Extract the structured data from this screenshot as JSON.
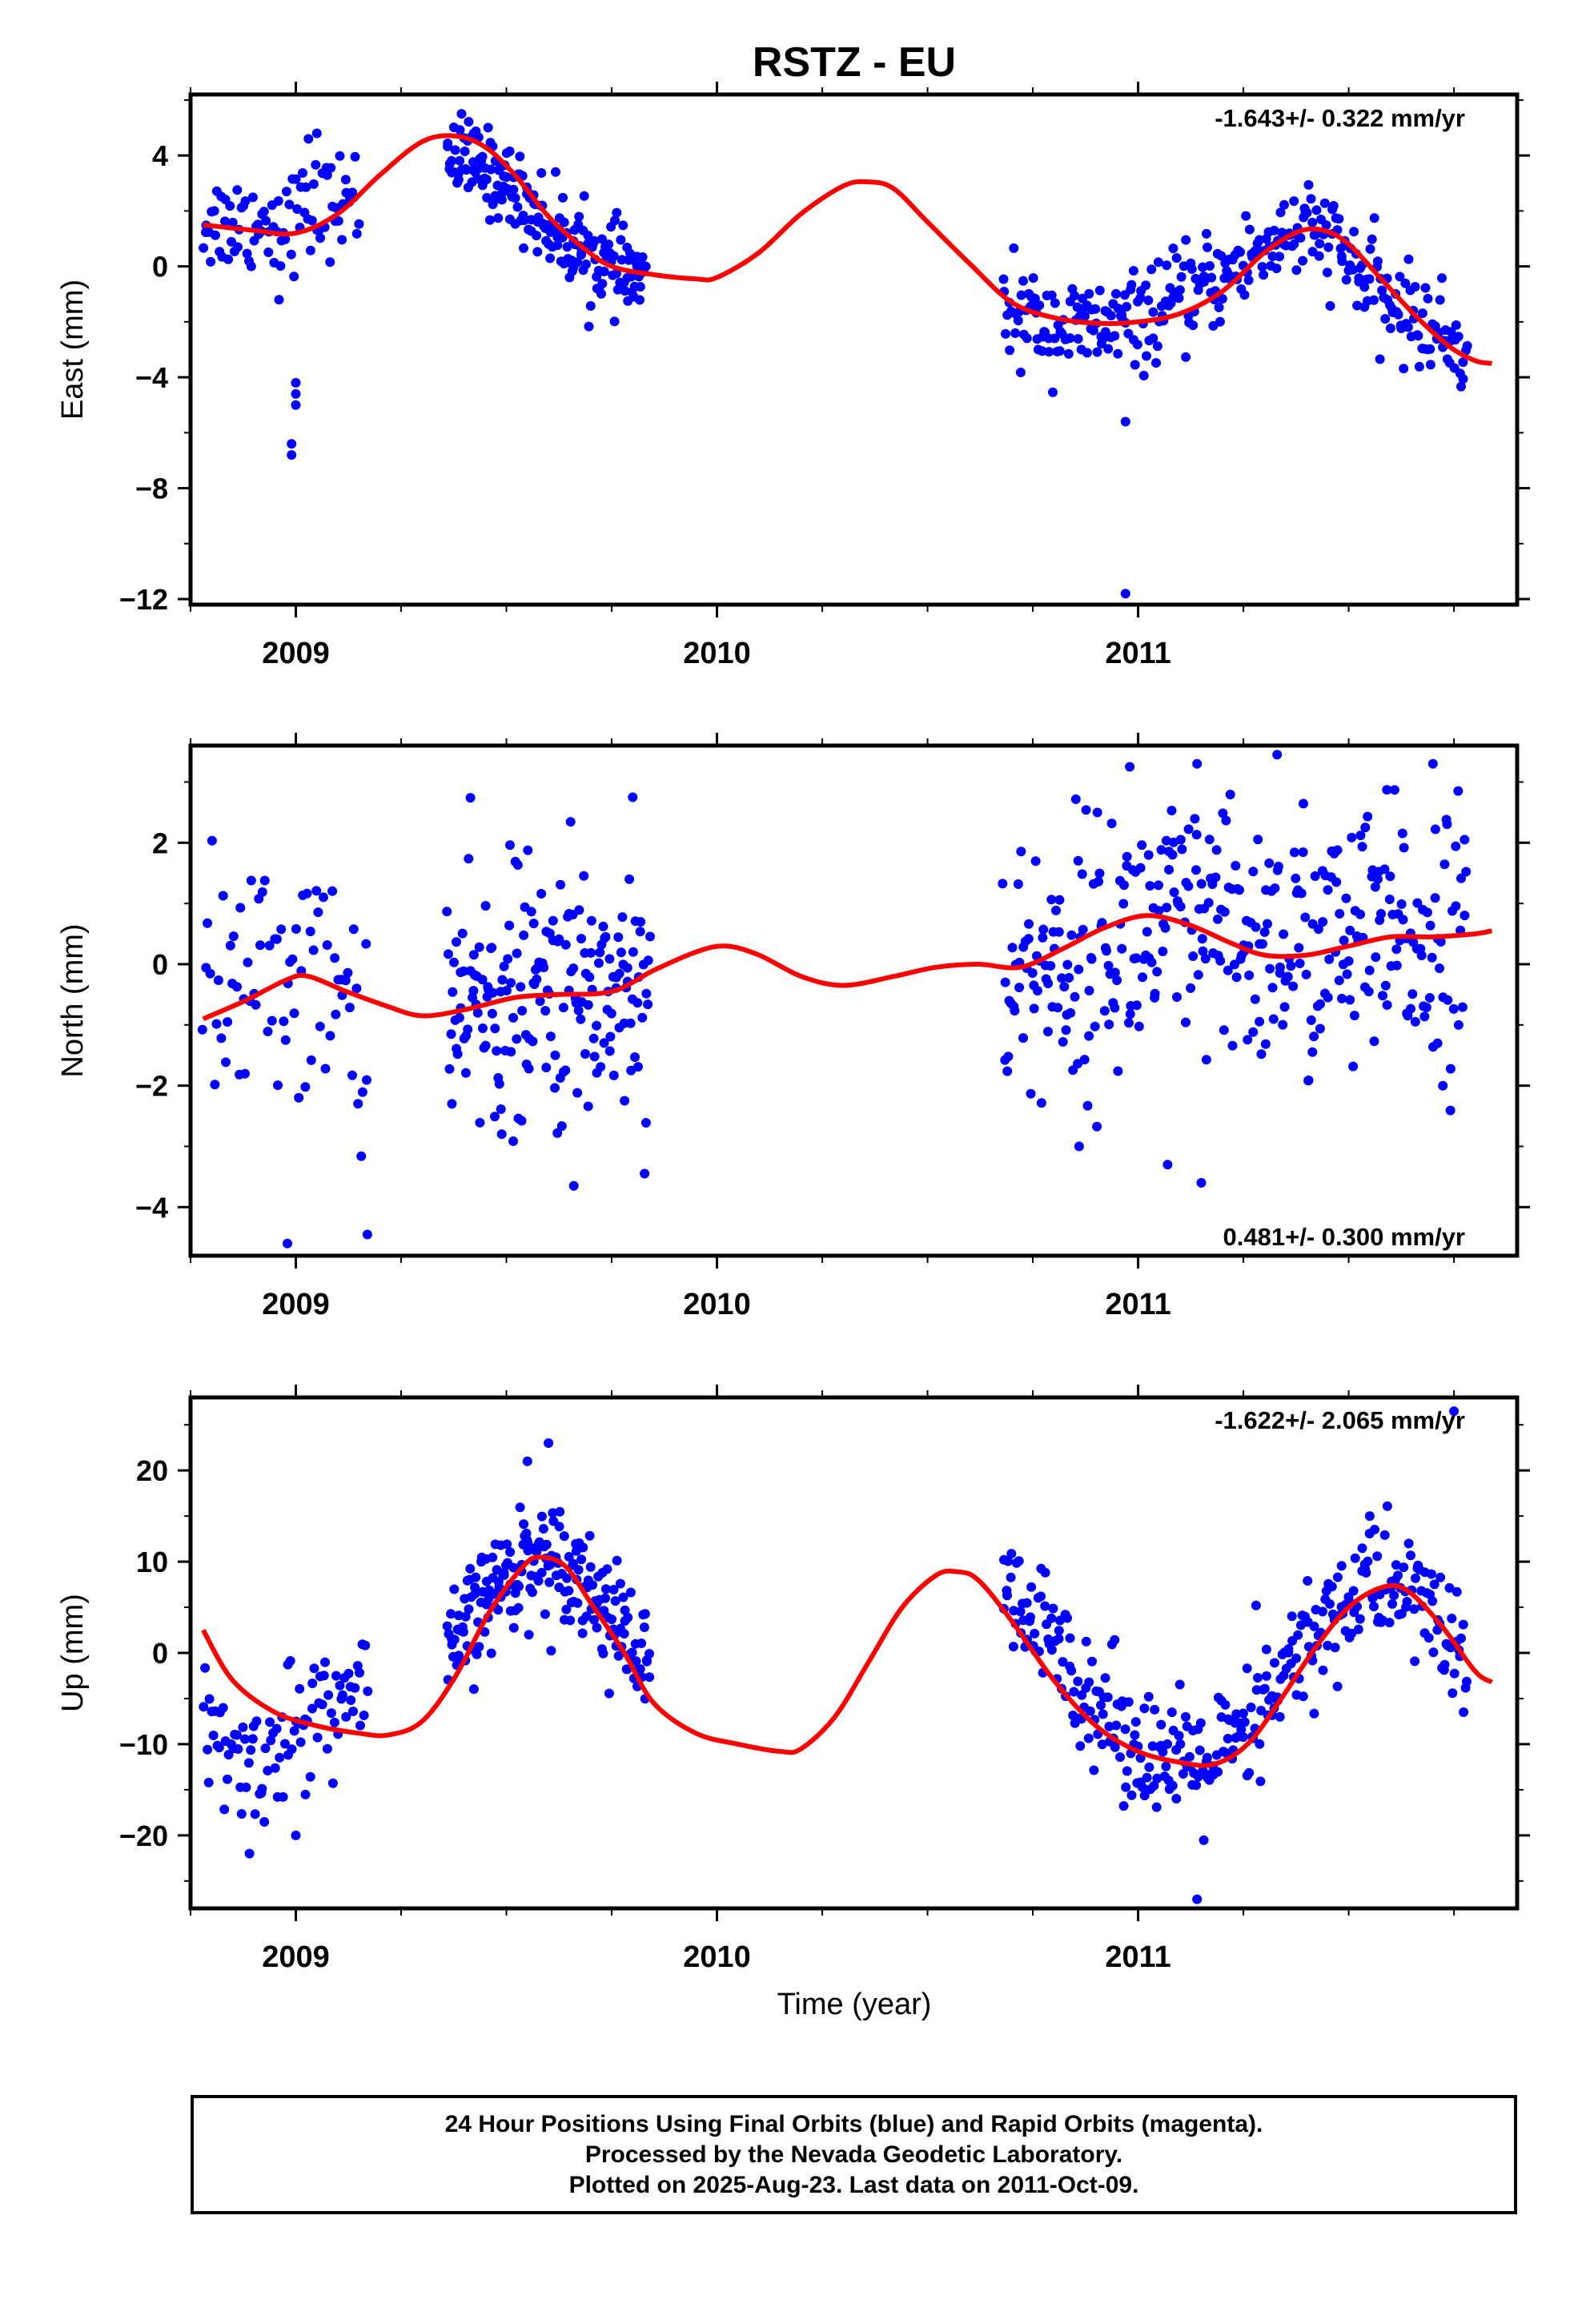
{
  "title": "RSTZ - EU",
  "xlabel": "Time (year)",
  "colors": {
    "data": "#0000ff",
    "fit": "#ff0000",
    "frame": "#000000"
  },
  "footer": [
    "24 Hour Positions Using Final Orbits (blue) and Rapid Orbits (magenta).",
    "Processed by the Nevada Geodetic Laboratory.",
    "Plotted on 2025-Aug-23. Last data on 2011-Oct-09."
  ],
  "chart_data": [
    {
      "type": "scatter",
      "name": "east",
      "ylabel": "East (mm)",
      "rate_label": "-1.643+/- 0.322 mm/yr",
      "xlim": [
        2008.75,
        2011.9
      ],
      "ylim": [
        -12.2,
        6.2
      ],
      "yticks": [
        4,
        0,
        -4,
        -8,
        -12
      ],
      "ytick_labels": [
        "4",
        "0",
        "−4",
        "−8",
        "−12"
      ],
      "xticks": [
        2009,
        2010,
        2011
      ],
      "xtick_labels": [
        "2009",
        "2010",
        "2011"
      ],
      "minor_step": 0.25,
      "segments": [
        {
          "x0": 2008.78,
          "x1": 2009.15,
          "n": 90,
          "trend": [
            [
              2008.78,
              1.6
            ],
            [
              2008.95,
              1.6
            ],
            [
              2009.15,
              2.5
            ]
          ],
          "spread": 0.9
        },
        {
          "x0": 2009.36,
          "x1": 2009.83,
          "n": 200,
          "trend": [
            [
              2009.36,
              4.2
            ],
            [
              2009.5,
              3.0
            ],
            [
              2009.62,
              1.2
            ],
            [
              2009.72,
              0.2
            ],
            [
              2009.83,
              -0.6
            ]
          ],
          "spread": 0.75
        },
        {
          "x0": 2010.68,
          "x1": 2011.78,
          "n": 330,
          "trend": [
            [
              2010.68,
              -1.6
            ],
            [
              2010.85,
              -2.3
            ],
            [
              2011.0,
              -2.0
            ],
            [
              2011.2,
              -0.4
            ],
            [
              2011.35,
              1.2
            ],
            [
              2011.45,
              1.1
            ],
            [
              2011.58,
              -1.2
            ],
            [
              2011.78,
              -3.0
            ]
          ],
          "spread": 0.85
        }
      ],
      "outliers": [
        [
          2008.99,
          -6.4
        ],
        [
          2008.99,
          -6.8
        ],
        [
          2009.0,
          -5.0
        ],
        [
          2009.0,
          -4.2
        ],
        [
          2009.0,
          -4.6
        ],
        [
          2010.97,
          -5.6
        ],
        [
          2010.97,
          -11.8
        ],
        [
          2009.03,
          4.6
        ],
        [
          2009.05,
          4.8
        ],
        [
          2008.96,
          -1.2
        ]
      ],
      "fit": [
        [
          2008.78,
          1.5
        ],
        [
          2008.9,
          1.3
        ],
        [
          2009.0,
          1.2
        ],
        [
          2009.1,
          1.9
        ],
        [
          2009.2,
          3.3
        ],
        [
          2009.3,
          4.5
        ],
        [
          2009.38,
          4.7
        ],
        [
          2009.45,
          4.3
        ],
        [
          2009.52,
          3.3
        ],
        [
          2009.6,
          1.8
        ],
        [
          2009.68,
          0.7
        ],
        [
          2009.75,
          0.0
        ],
        [
          2009.85,
          -0.3
        ],
        [
          2009.95,
          -0.45
        ],
        [
          2010.0,
          -0.4
        ],
        [
          2010.1,
          0.5
        ],
        [
          2010.2,
          1.9
        ],
        [
          2010.3,
          2.9
        ],
        [
          2010.36,
          3.05
        ],
        [
          2010.42,
          2.8
        ],
        [
          2010.5,
          1.6
        ],
        [
          2010.6,
          0.1
        ],
        [
          2010.7,
          -1.3
        ],
        [
          2010.8,
          -1.85
        ],
        [
          2010.9,
          -2.05
        ],
        [
          2011.0,
          -2.0
        ],
        [
          2011.1,
          -1.7
        ],
        [
          2011.2,
          -0.9
        ],
        [
          2011.3,
          0.5
        ],
        [
          2011.38,
          1.25
        ],
        [
          2011.44,
          1.3
        ],
        [
          2011.5,
          0.8
        ],
        [
          2011.58,
          -0.5
        ],
        [
          2011.66,
          -1.8
        ],
        [
          2011.74,
          -2.9
        ],
        [
          2011.8,
          -3.4
        ],
        [
          2011.84,
          -3.5
        ]
      ]
    },
    {
      "type": "scatter",
      "name": "north",
      "ylabel": "North (mm)",
      "rate_label": "0.481+/- 0.300 mm/yr",
      "xlim": [
        2008.75,
        2011.9
      ],
      "ylim": [
        -4.8,
        3.6
      ],
      "yticks": [
        2,
        0,
        -2,
        -4
      ],
      "ytick_labels": [
        "2",
        "0",
        "−2",
        "−4"
      ],
      "xticks": [
        2009,
        2010,
        2011
      ],
      "xtick_labels": [
        "2009",
        "2010",
        "2011"
      ],
      "minor_step": 0.25,
      "segments": [
        {
          "x0": 2008.78,
          "x1": 2009.17,
          "n": 75,
          "trend": [
            [
              2008.78,
              -0.5
            ],
            [
              2009.0,
              -0.1
            ],
            [
              2009.17,
              -0.8
            ]
          ],
          "spread": 1.0
        },
        {
          "x0": 2009.36,
          "x1": 2009.84,
          "n": 190,
          "trend": [
            [
              2009.36,
              -0.8
            ],
            [
              2009.6,
              -0.5
            ],
            [
              2009.84,
              -0.3
            ]
          ],
          "spread": 1.1
        },
        {
          "x0": 2010.68,
          "x1": 2011.78,
          "n": 360,
          "trend": [
            [
              2010.68,
              -0.3
            ],
            [
              2010.9,
              0.2
            ],
            [
              2011.05,
              0.6
            ],
            [
              2011.25,
              0.3
            ],
            [
              2011.5,
              0.3
            ],
            [
              2011.78,
              0.5
            ]
          ],
          "spread": 1.1
        }
      ],
      "outliers": [
        [
          2008.98,
          -4.6
        ],
        [
          2009.17,
          -4.45
        ],
        [
          2009.66,
          -3.65
        ],
        [
          2011.15,
          -3.6
        ],
        [
          2011.33,
          3.45
        ],
        [
          2011.14,
          3.3
        ],
        [
          2011.7,
          3.3
        ],
        [
          2009.8,
          2.75
        ],
        [
          2010.98,
          3.25
        ],
        [
          2010.86,
          -3.0
        ],
        [
          2011.07,
          -3.3
        ]
      ],
      "fit": [
        [
          2008.78,
          -0.9
        ],
        [
          2008.88,
          -0.6
        ],
        [
          2008.98,
          -0.25
        ],
        [
          2009.03,
          -0.2
        ],
        [
          2009.12,
          -0.45
        ],
        [
          2009.22,
          -0.7
        ],
        [
          2009.3,
          -0.85
        ],
        [
          2009.4,
          -0.75
        ],
        [
          2009.52,
          -0.55
        ],
        [
          2009.62,
          -0.5
        ],
        [
          2009.75,
          -0.45
        ],
        [
          2009.85,
          -0.1
        ],
        [
          2009.95,
          0.2
        ],
        [
          2010.02,
          0.3
        ],
        [
          2010.1,
          0.15
        ],
        [
          2010.2,
          -0.2
        ],
        [
          2010.3,
          -0.35
        ],
        [
          2010.42,
          -0.2
        ],
        [
          2010.52,
          -0.05
        ],
        [
          2010.62,
          0.0
        ],
        [
          2010.72,
          -0.05
        ],
        [
          2010.82,
          0.25
        ],
        [
          2010.92,
          0.6
        ],
        [
          2011.02,
          0.8
        ],
        [
          2011.12,
          0.65
        ],
        [
          2011.22,
          0.35
        ],
        [
          2011.3,
          0.15
        ],
        [
          2011.4,
          0.15
        ],
        [
          2011.5,
          0.3
        ],
        [
          2011.6,
          0.45
        ],
        [
          2011.7,
          0.45
        ],
        [
          2011.8,
          0.5
        ],
        [
          2011.84,
          0.55
        ]
      ]
    },
    {
      "type": "scatter",
      "name": "up",
      "ylabel": "Up (mm)",
      "rate_label": "-1.622+/- 2.065 mm/yr",
      "xlim": [
        2008.75,
        2011.9
      ],
      "ylim": [
        -28,
        28
      ],
      "yticks": [
        20,
        10,
        0,
        -10,
        -20
      ],
      "ytick_labels": [
        "20",
        "10",
        "0",
        "−10",
        "−20"
      ],
      "xticks": [
        2009,
        2010,
        2011
      ],
      "xtick_labels": [
        "2009",
        "2010",
        "2011"
      ],
      "minor_step": 0.25,
      "segments": [
        {
          "x0": 2008.78,
          "x1": 2009.17,
          "n": 95,
          "trend": [
            [
              2008.78,
              -8.0
            ],
            [
              2008.88,
              -13.0
            ],
            [
              2009.0,
              -8.0
            ],
            [
              2009.17,
              -4.0
            ]
          ],
          "spread": 3.5
        },
        {
          "x0": 2009.36,
          "x1": 2009.84,
          "n": 210,
          "trend": [
            [
              2009.36,
              -1.0
            ],
            [
              2009.45,
              6.0
            ],
            [
              2009.55,
              10.5
            ],
            [
              2009.65,
              10.0
            ],
            [
              2009.75,
              4.0
            ],
            [
              2009.84,
              -2.0
            ]
          ],
          "spread": 3.0
        },
        {
          "x0": 2010.68,
          "x1": 2011.78,
          "n": 340,
          "trend": [
            [
              2010.68,
              6.0
            ],
            [
              2010.8,
              1.0
            ],
            [
              2010.95,
              -8.0
            ],
            [
              2011.1,
              -13.0
            ],
            [
              2011.25,
              -10.0
            ],
            [
              2011.4,
              1.0
            ],
            [
              2011.55,
              8.0
            ],
            [
              2011.68,
              6.0
            ],
            [
              2011.78,
              -2.0
            ]
          ],
          "spread": 3.5
        }
      ],
      "outliers": [
        [
          2009.6,
          23.0
        ],
        [
          2011.75,
          26.5
        ],
        [
          2011.14,
          -27.0
        ],
        [
          2008.89,
          -22.0
        ],
        [
          2009.55,
          21.0
        ],
        [
          2011.55,
          15.0
        ],
        [
          2011.28,
          5.2
        ],
        [
          2009.0,
          -20.0
        ]
      ],
      "fit": [
        [
          2008.78,
          2.5
        ],
        [
          2008.85,
          -3.0
        ],
        [
          2008.95,
          -6.5
        ],
        [
          2009.05,
          -8.0
        ],
        [
          2009.15,
          -8.8
        ],
        [
          2009.22,
          -9.0
        ],
        [
          2009.3,
          -7.5
        ],
        [
          2009.38,
          -2.5
        ],
        [
          2009.46,
          4.5
        ],
        [
          2009.54,
          9.5
        ],
        [
          2009.58,
          10.5
        ],
        [
          2009.64,
          9.5
        ],
        [
          2009.7,
          5.5
        ],
        [
          2009.78,
          0.0
        ],
        [
          2009.85,
          -5.5
        ],
        [
          2009.95,
          -8.8
        ],
        [
          2010.05,
          -10.0
        ],
        [
          2010.15,
          -10.8
        ],
        [
          2010.2,
          -10.5
        ],
        [
          2010.28,
          -7.0
        ],
        [
          2010.36,
          -1.0
        ],
        [
          2010.44,
          5.0
        ],
        [
          2010.52,
          8.5
        ],
        [
          2010.57,
          8.9
        ],
        [
          2010.62,
          8.0
        ],
        [
          2010.7,
          3.5
        ],
        [
          2010.8,
          -3.0
        ],
        [
          2010.9,
          -8.0
        ],
        [
          2011.0,
          -10.8
        ],
        [
          2011.1,
          -12.0
        ],
        [
          2011.18,
          -12.2
        ],
        [
          2011.26,
          -10.0
        ],
        [
          2011.34,
          -5.0
        ],
        [
          2011.42,
          0.5
        ],
        [
          2011.5,
          5.0
        ],
        [
          2011.58,
          7.2
        ],
        [
          2011.64,
          6.8
        ],
        [
          2011.72,
          3.0
        ],
        [
          2011.8,
          -2.0
        ],
        [
          2011.84,
          -3.2
        ]
      ]
    }
  ]
}
